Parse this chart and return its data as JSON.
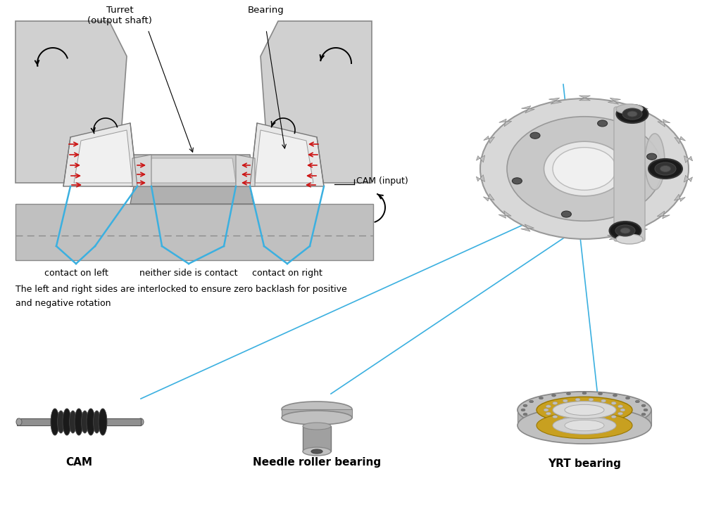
{
  "bg_color": "#ffffff",
  "gray_light": "#cccccc",
  "gray_mid": "#aaaaaa",
  "gray_dark": "#555555",
  "gray_body": "#d8d8d8",
  "gray_base": "#b8b8b8",
  "cyan_color": "#3bb0e0",
  "red_color": "#cc1111",
  "black": "#111111",
  "gold_color": "#c8a020",
  "steel_light": "#d4d4d4",
  "steel_dark": "#888888",
  "label_turret": "Turret\n(output shaft)",
  "label_bearing": "Bearing",
  "label_cam_input": "CAM (input)",
  "label_contact_left": "contact on left",
  "label_contact_neither": "neither side is contact",
  "label_contact_right": "contact on right",
  "label_description": "The left and right sides are interlocked to ensure zero backlash for positive\nand negative rotation",
  "label_cam": "CAM",
  "label_needle": "Needle roller bearing",
  "label_yrt": "YRT bearing"
}
